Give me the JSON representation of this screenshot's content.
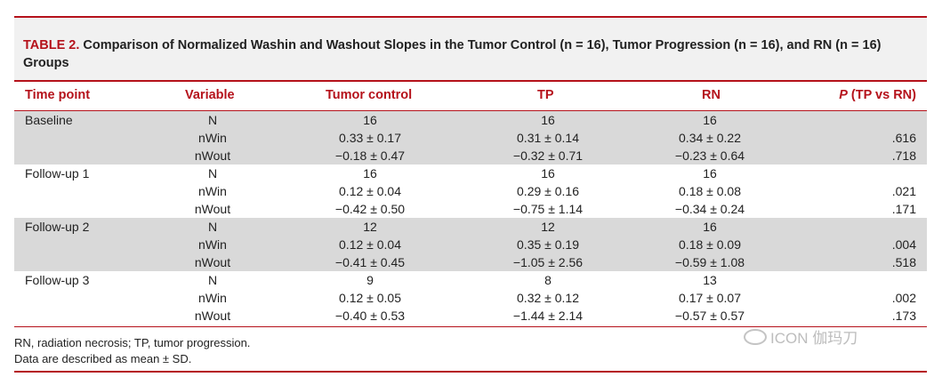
{
  "table": {
    "label": "TABLE 2.",
    "title": "Comparison of Normalized Washin and Washout Slopes in the Tumor Control (n = 16), Tumor Progression (n = 16), and RN (n = 16) Groups",
    "headers": {
      "time_point": "Time point",
      "variable": "Variable",
      "tumor_control": "Tumor control",
      "tp": "TP",
      "rn": "RN",
      "p_italic": "P",
      "p_rest": " (TP vs RN)"
    },
    "groups": [
      {
        "time_point": "Baseline",
        "rows": [
          {
            "variable": "N",
            "tumor_control": "16",
            "tp": "16",
            "rn": "16",
            "p": ""
          },
          {
            "variable": "nWin",
            "tumor_control": "0.33 ± 0.17",
            "tp": "0.31 ± 0.14",
            "rn": "0.34 ± 0.22",
            "p": ".616"
          },
          {
            "variable": "nWout",
            "tumor_control": "−0.18 ± 0.47",
            "tp": "−0.32 ± 0.71",
            "rn": "−0.23 ± 0.64",
            "p": ".718"
          }
        ]
      },
      {
        "time_point": "Follow-up 1",
        "rows": [
          {
            "variable": "N",
            "tumor_control": "16",
            "tp": "16",
            "rn": "16",
            "p": ""
          },
          {
            "variable": "nWin",
            "tumor_control": "0.12 ± 0.04",
            "tp": "0.29 ± 0.16",
            "rn": "0.18 ± 0.08",
            "p": ".021"
          },
          {
            "variable": "nWout",
            "tumor_control": "−0.42 ± 0.50",
            "tp": "−0.75 ± 1.14",
            "rn": "−0.34 ± 0.24",
            "p": ".171"
          }
        ]
      },
      {
        "time_point": "Follow-up 2",
        "rows": [
          {
            "variable": "N",
            "tumor_control": "12",
            "tp": "12",
            "rn": "16",
            "p": ""
          },
          {
            "variable": "nWin",
            "tumor_control": "0.12 ± 0.04",
            "tp": "0.35 ± 0.19",
            "rn": "0.18 ± 0.09",
            "p": ".004"
          },
          {
            "variable": "nWout",
            "tumor_control": "−0.41 ± 0.45",
            "tp": "−1.05 ± 2.56",
            "rn": "−0.59 ± 1.08",
            "p": ".518"
          }
        ]
      },
      {
        "time_point": "Follow-up 3",
        "rows": [
          {
            "variable": "N",
            "tumor_control": "9",
            "tp": "8",
            "rn": "13",
            "p": ""
          },
          {
            "variable": "nWin",
            "tumor_control": "0.12 ± 0.05",
            "tp": "0.32 ± 0.12",
            "rn": "0.17 ± 0.07",
            "p": ".002"
          },
          {
            "variable": "nWout",
            "tumor_control": "−0.40 ± 0.53",
            "tp": "−1.44 ± 2.14",
            "rn": "−0.57 ± 0.57",
            "p": ".173"
          }
        ]
      }
    ],
    "footnotes": [
      "RN, radiation necrosis; TP, tumor progression.",
      "Data are described as mean ± SD."
    ]
  },
  "watermark": {
    "text": "ICON 伽玛刀",
    "icon": "wechat-icon"
  },
  "colors": {
    "accent": "#b5121b",
    "shade": "#d9d9d9",
    "title_bg": "#f1f1f1"
  }
}
